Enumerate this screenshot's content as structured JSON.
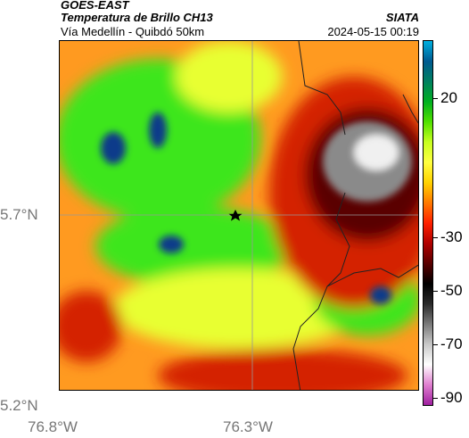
{
  "header": {
    "satellite": "GOES-EAST",
    "product": "Temperatura de Brillo CH13",
    "region": "Vía Medellín - Quibdó 50km",
    "agency": "SIATA",
    "datetime": "2024-05-15 00:19"
  },
  "axes": {
    "y_ticks": [
      "5.7°N",
      "5.2°N"
    ],
    "x_ticks": [
      "76.8°W",
      "76.3°W"
    ]
  },
  "colorbar": {
    "labels": [
      "20",
      "-30",
      "-50",
      "-70",
      "-90"
    ],
    "palette": [
      "#a020a0",
      "#e080d0",
      "#ffffff",
      "#c8c8c8",
      "#7a7a7a",
      "#2a2a2a",
      "#000000",
      "#5a0000",
      "#b00000",
      "#ff2000",
      "#ff7a00",
      "#ffd200",
      "#ffff40",
      "#c8ff20",
      "#50e000",
      "#00b020",
      "#008060",
      "#005a90",
      "#00b0e0"
    ]
  },
  "map": {
    "marker": "star-icon",
    "colors": {
      "background": "#ff9a20",
      "green": "#3ee61e",
      "yellow": "#e8ff30",
      "red": "#d42000",
      "darkred": "#5a0000",
      "gray": "#8a8a8a",
      "white": "#f0f0f0",
      "blue": "#0a3a8a"
    }
  }
}
